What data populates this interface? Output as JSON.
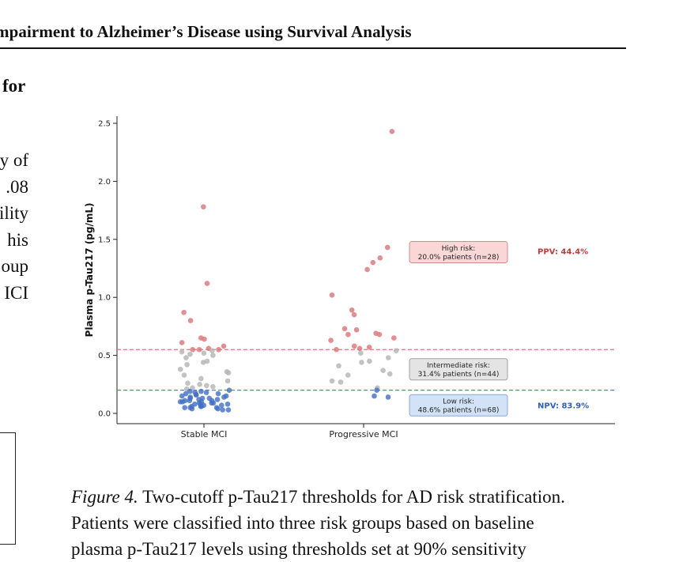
{
  "header": {
    "title": "mpairment to Alzheimer’s Disease using Survival Analysis"
  },
  "left_column": {
    "section_fragment": "for",
    "line_fragments": [
      "y of",
      ".08",
      "ility",
      "his",
      "oup",
      "ICI"
    ]
  },
  "chart_data": {
    "type": "scatter",
    "title": "",
    "xlabel": "",
    "ylabel": "Plasma p-Tau217 (pg/mL)",
    "categories": [
      "Stable MCI",
      "Progressive MCI"
    ],
    "ylim": [
      -0.08,
      2.57
    ],
    "yticks": [
      "0.0",
      "0.5",
      "1.0",
      "1.5",
      "2.0",
      "2.5"
    ],
    "ytick_values": [
      0.0,
      0.5,
      1.0,
      1.5,
      2.0,
      2.5
    ],
    "grid": false,
    "thresholds": [
      {
        "value": 0.55,
        "color": "#d9777a"
      },
      {
        "value": 0.2,
        "color": "#5a86c9"
      }
    ],
    "points": [
      {
        "group": "Stable MCI",
        "values": [
          1.78,
          1.12,
          0.87,
          0.8,
          0.65,
          0.64,
          0.61,
          0.58,
          0.56,
          0.55,
          0.55,
          0.55,
          0.54,
          0.53,
          0.52,
          0.51,
          0.5,
          0.48,
          0.45,
          0.44,
          0.42,
          0.38,
          0.36,
          0.35,
          0.33,
          0.3,
          0.28,
          0.26,
          0.25,
          0.24,
          0.23,
          0.22,
          0.21,
          0.2,
          0.19,
          0.19,
          0.18,
          0.18,
          0.17,
          0.17,
          0.16,
          0.16,
          0.15,
          0.15,
          0.14,
          0.14,
          0.13,
          0.13,
          0.13,
          0.12,
          0.12,
          0.11,
          0.11,
          0.11,
          0.1,
          0.1,
          0.1,
          0.09,
          0.09,
          0.09,
          0.08,
          0.08,
          0.08,
          0.07,
          0.07,
          0.07,
          0.06,
          0.06,
          0.06,
          0.05,
          0.05,
          0.05,
          0.04,
          0.04,
          0.03,
          0.03
        ]
      },
      {
        "group": "Progressive MCI",
        "values": [
          2.43,
          1.43,
          1.34,
          1.3,
          1.24,
          1.02,
          0.89,
          0.85,
          0.73,
          0.72,
          0.69,
          0.68,
          0.68,
          0.65,
          0.63,
          0.58,
          0.57,
          0.56,
          0.55,
          0.54,
          0.52,
          0.48,
          0.45,
          0.44,
          0.41,
          0.37,
          0.34,
          0.33,
          0.28,
          0.27,
          0.22,
          0.2,
          0.15,
          0.14
        ]
      }
    ],
    "colors": {
      "high": "#d9777a",
      "mid": "#b5b5b5",
      "low": "#4472c4"
    },
    "boxes": [
      {
        "key": "high",
        "lines": [
          "High risk:",
          "20.0% patients (n=28)"
        ],
        "y": 1.39,
        "fill": "#f9d7d7",
        "stroke": "#cf8c8c"
      },
      {
        "key": "mid",
        "lines": [
          "Intermediate risk:",
          "31.4% patients (n=44)"
        ],
        "y": 0.38,
        "fill": "#e4e4e4",
        "stroke": "#a0a0a0"
      },
      {
        "key": "low",
        "lines": [
          "Low risk:",
          "48.6% patients (n=68)"
        ],
        "y": 0.07,
        "fill": "#d3e3f7",
        "stroke": "#8aa8d0"
      }
    ],
    "annotations": [
      {
        "text": "PPV: 44.4%",
        "y": 1.4,
        "color": "#c0393b"
      },
      {
        "text": "NPV: 83.9%",
        "y": 0.07,
        "color": "#3060b8"
      }
    ]
  },
  "caption": {
    "label": "Figure 4.",
    "text": " Two-cutoff p-Tau217 thresholds for AD risk stratification.",
    "lines": [
      "Patients were classified into three risk groups based on baseline",
      "plasma p-Tau217 levels using thresholds set at 90% sensitivity"
    ]
  }
}
